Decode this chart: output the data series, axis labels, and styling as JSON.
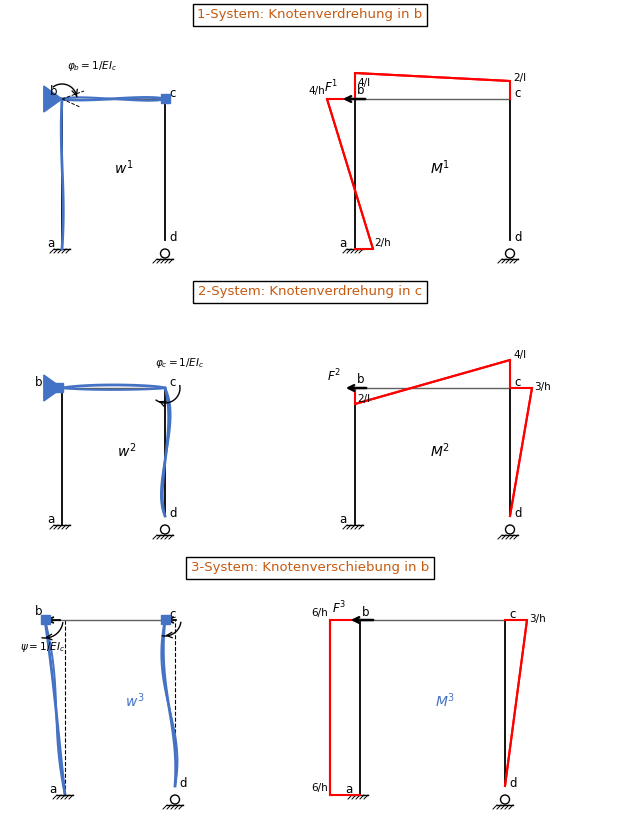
{
  "title1": "1-System: Knotenverdrehung in b",
  "title2": "2-System: Knotenverdrehung in c",
  "title3": "3-System: Knotenverschiebung in b",
  "bg_color": "#ffffff",
  "black": "#000000",
  "blue": "#4472C4",
  "red": "#FF0000",
  "gray": "#606060",
  "title_color": "#C55A11"
}
